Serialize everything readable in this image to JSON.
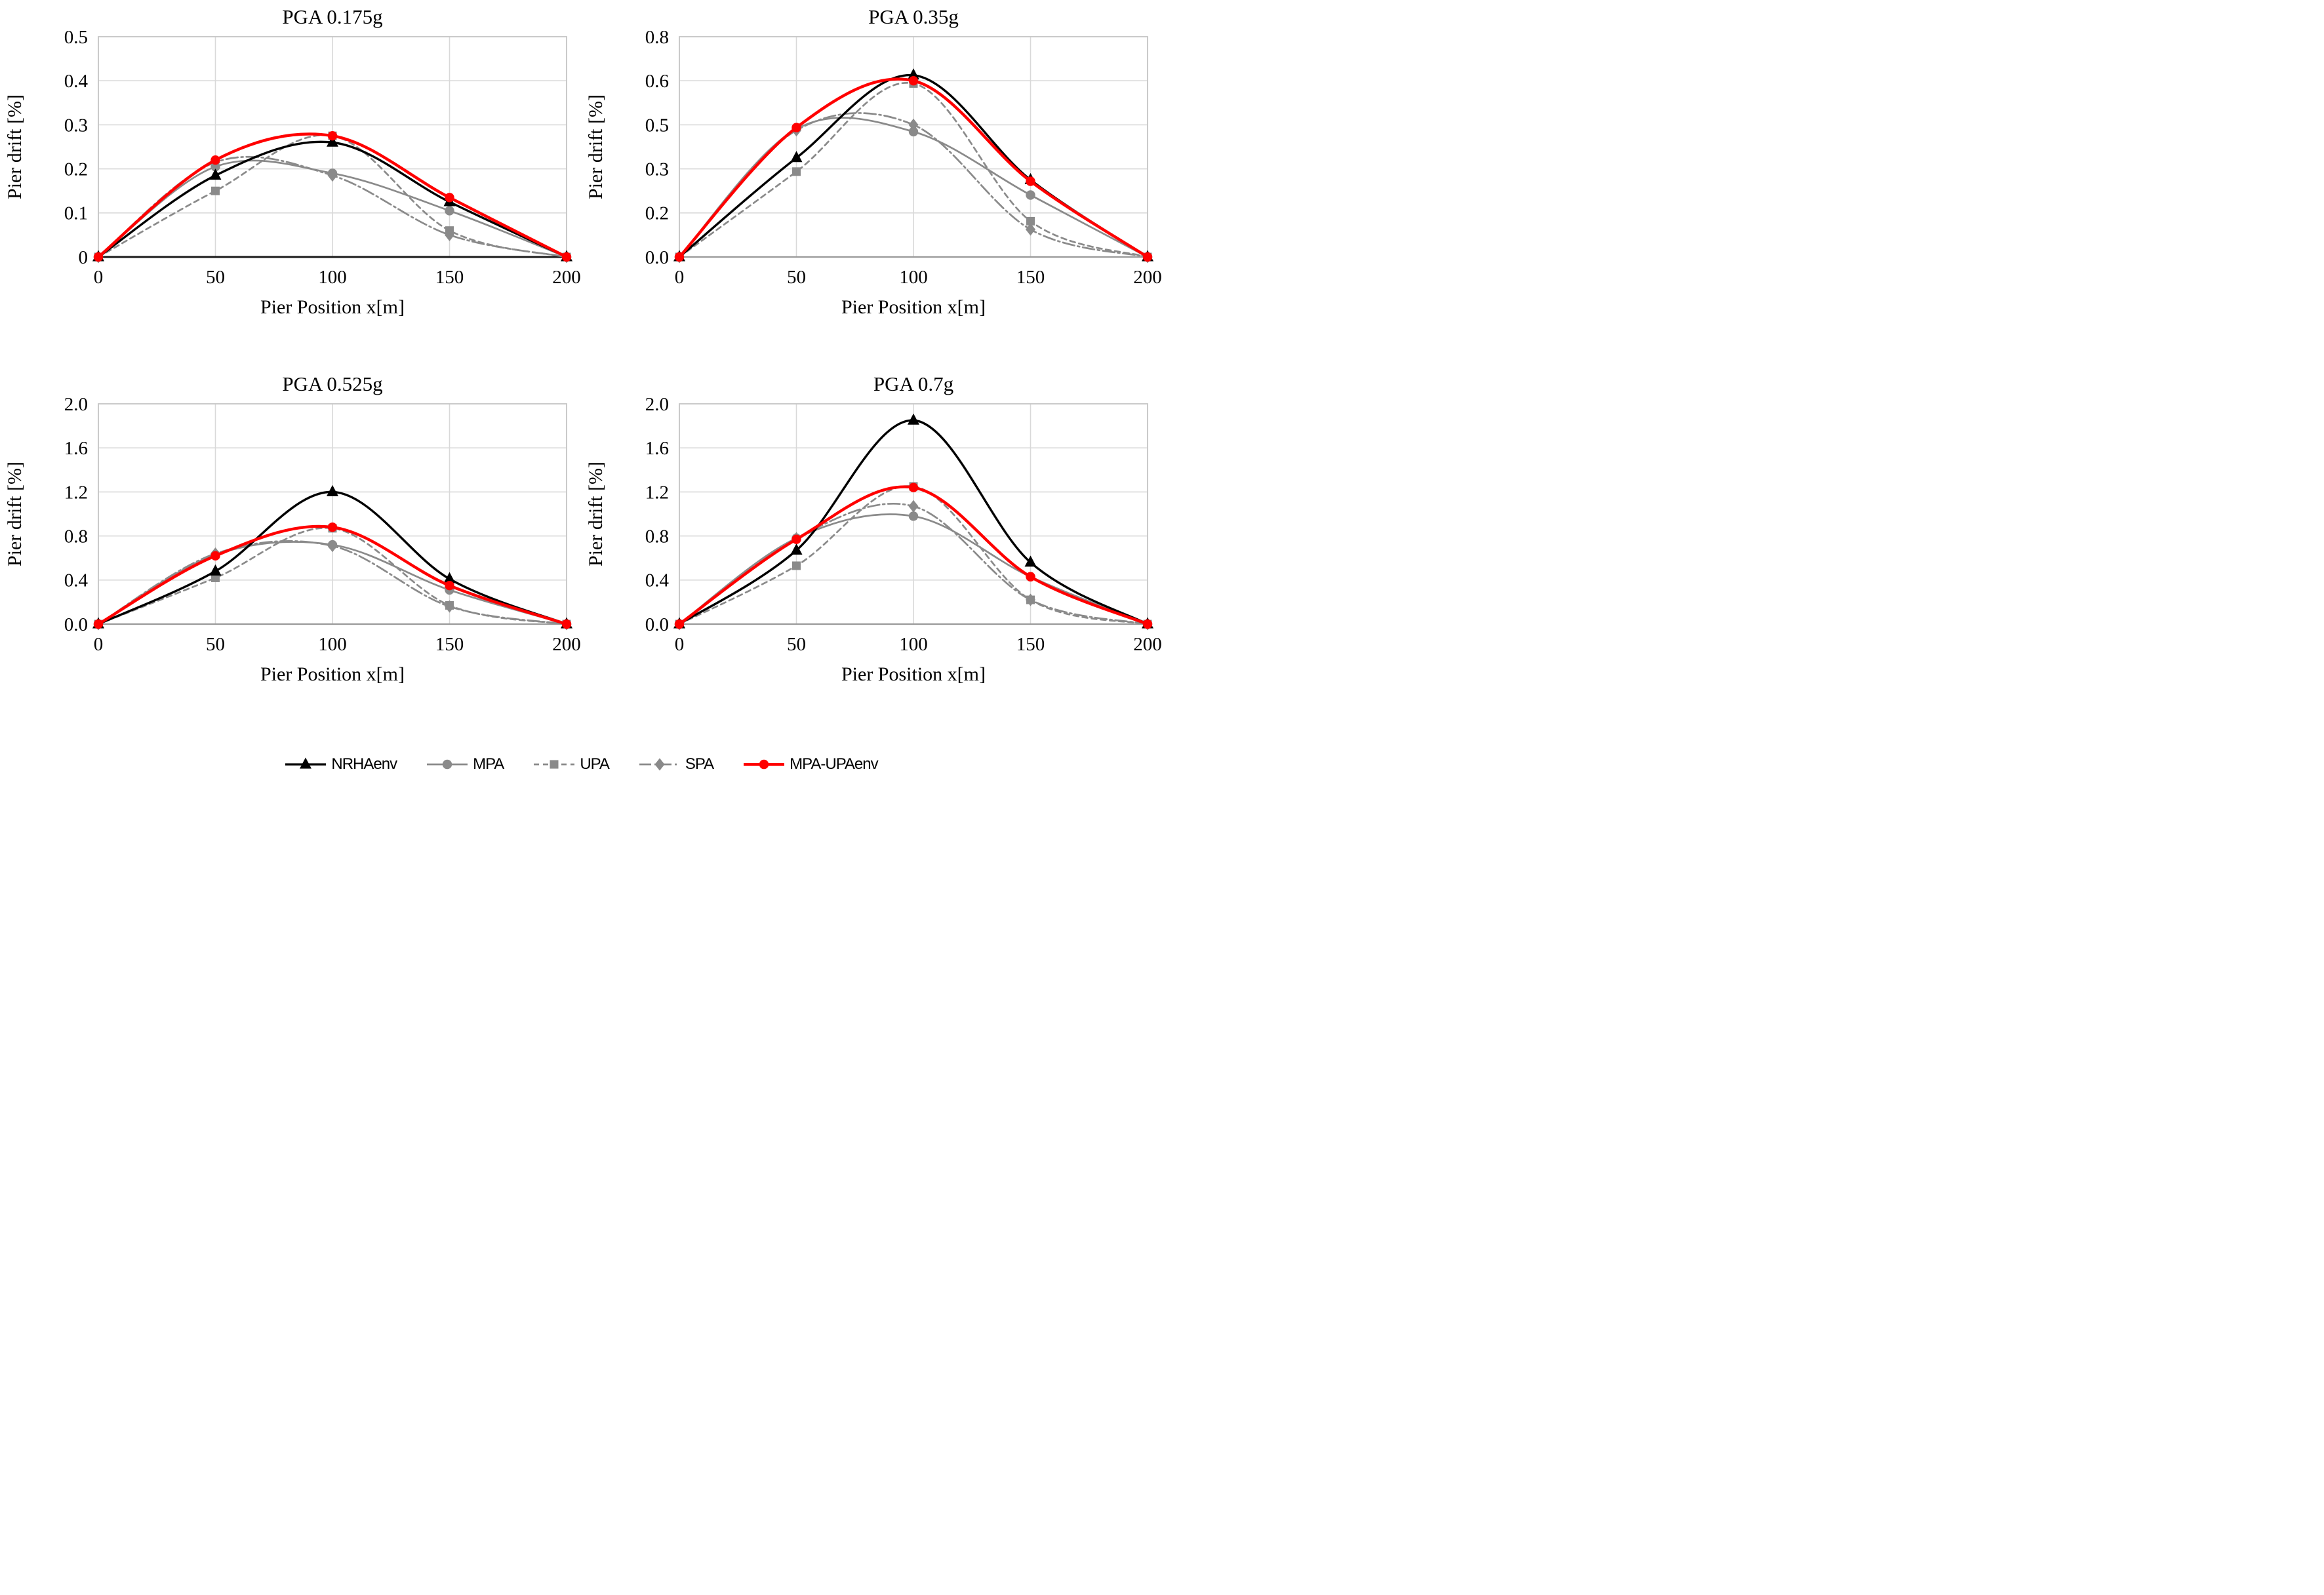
{
  "page": {
    "background": "#ffffff"
  },
  "colors": {
    "black": "#000000",
    "gray": "#8a8a8a",
    "red": "#ff0000",
    "gridline": "#d9d9d9",
    "plot_border": "#c6c6c6",
    "axis_line_dark": "#1a1a1a",
    "axis_line_gray": "#9a9a9a"
  },
  "legend": {
    "items": [
      {
        "label": "NRHAenv",
        "color": "#000000",
        "marker": "triangle",
        "dash": "solid"
      },
      {
        "label": "MPA",
        "color": "#8a8a8a",
        "marker": "circle",
        "dash": "solid"
      },
      {
        "label": "UPA",
        "color": "#8a8a8a",
        "marker": "square",
        "dash": "dashed"
      },
      {
        "label": "SPA",
        "color": "#8a8a8a",
        "marker": "diamond",
        "dash": "dashdot"
      },
      {
        "label": "MPA-UPAenv",
        "color": "#ff0000",
        "marker": "circle",
        "dash": "solid"
      }
    ]
  },
  "chart_data": [
    {
      "type": "line",
      "title": "PGA 0.175g",
      "xlabel": "Pier Position x[m]",
      "ylabel": "Pier drift  [%]",
      "x": [
        0,
        50,
        100,
        150,
        200
      ],
      "xlim": [
        0,
        200
      ],
      "ylim": [
        0,
        0.5
      ],
      "xtick_labels": [
        "0",
        "50",
        "100",
        "150",
        "200"
      ],
      "ytick_values": [
        0,
        0.1,
        0.2,
        0.3,
        0.4,
        0.5
      ],
      "ytick_labels": [
        "0",
        "0.1",
        "0.2",
        "0.3",
        "0.4",
        "0.5"
      ],
      "grid": true,
      "legend_position": "bottom-shared",
      "series": [
        {
          "name": "NRHAenv",
          "values": [
            0,
            0.185,
            0.26,
            0.125,
            0
          ]
        },
        {
          "name": "MPA",
          "values": [
            0,
            0.205,
            0.19,
            0.105,
            0
          ]
        },
        {
          "name": "UPA",
          "values": [
            0,
            0.15,
            0.275,
            0.06,
            0
          ]
        },
        {
          "name": "SPA",
          "values": [
            0,
            0.215,
            0.185,
            0.05,
            0
          ]
        },
        {
          "name": "MPA-UPAenv",
          "values": [
            0,
            0.22,
            0.275,
            0.135,
            0
          ]
        }
      ]
    },
    {
      "type": "line",
      "title": "PGA 0.35g",
      "xlabel": "Pier Position x[m]",
      "ylabel": "Pier drift  [%]",
      "x": [
        0,
        50,
        100,
        150,
        200
      ],
      "xlim": [
        0,
        200
      ],
      "ylim": [
        0,
        0.8
      ],
      "xtick_labels": [
        "0",
        "50",
        "100",
        "150",
        "200"
      ],
      "ytick_values": [
        0,
        0.16,
        0.32,
        0.48,
        0.64,
        0.8
      ],
      "ytick_labels": [
        "0.0",
        "0.2",
        "0.3",
        "0.5",
        "0.6",
        "0.8"
      ],
      "grid": true,
      "legend_position": "bottom-shared",
      "series": [
        {
          "name": "NRHAenv",
          "values": [
            0,
            0.36,
            0.66,
            0.28,
            0
          ]
        },
        {
          "name": "MPA",
          "values": [
            0,
            0.465,
            0.455,
            0.225,
            0
          ]
        },
        {
          "name": "UPA",
          "values": [
            0,
            0.31,
            0.63,
            0.13,
            0
          ]
        },
        {
          "name": "SPA",
          "values": [
            0,
            0.46,
            0.48,
            0.1,
            0
          ]
        },
        {
          "name": "MPA-UPAenv",
          "values": [
            0,
            0.47,
            0.64,
            0.275,
            0
          ]
        }
      ]
    },
    {
      "type": "line",
      "title": "PGA 0.525g",
      "xlabel": "Pier Position x[m]",
      "ylabel": "Pier drift  [%]",
      "x": [
        0,
        50,
        100,
        150,
        200
      ],
      "xlim": [
        0,
        200
      ],
      "ylim": [
        0,
        2.0
      ],
      "xtick_labels": [
        "0",
        "50",
        "100",
        "150",
        "200"
      ],
      "ytick_values": [
        0,
        0.4,
        0.8,
        1.2,
        1.6,
        2.0
      ],
      "ytick_labels": [
        "0.0",
        "0.4",
        "0.8",
        "1.2",
        "1.6",
        "2.0"
      ],
      "grid": true,
      "legend_position": "bottom-shared",
      "series": [
        {
          "name": "NRHAenv",
          "values": [
            0,
            0.48,
            1.2,
            0.41,
            0
          ]
        },
        {
          "name": "MPA",
          "values": [
            0,
            0.63,
            0.72,
            0.31,
            0
          ]
        },
        {
          "name": "UPA",
          "values": [
            0,
            0.42,
            0.87,
            0.17,
            0
          ]
        },
        {
          "name": "SPA",
          "values": [
            0,
            0.64,
            0.71,
            0.16,
            0
          ]
        },
        {
          "name": "MPA-UPAenv",
          "values": [
            0,
            0.62,
            0.88,
            0.35,
            0
          ]
        }
      ]
    },
    {
      "type": "line",
      "title": "PGA 0.7g",
      "xlabel": "Pier Position x[m]",
      "ylabel": "Pier drift  [%]",
      "x": [
        0,
        50,
        100,
        150,
        200
      ],
      "xlim": [
        0,
        200
      ],
      "ylim": [
        0,
        2.0
      ],
      "xtick_labels": [
        "0",
        "50",
        "100",
        "150",
        "200"
      ],
      "ytick_values": [
        0,
        0.4,
        0.8,
        1.2,
        1.6,
        2.0
      ],
      "ytick_labels": [
        "0.0",
        "0.4",
        "0.8",
        "1.2",
        "1.6",
        "2.0"
      ],
      "grid": true,
      "legend_position": "bottom-shared",
      "series": [
        {
          "name": "NRHAenv",
          "values": [
            0,
            0.67,
            1.85,
            0.56,
            0
          ]
        },
        {
          "name": "MPA",
          "values": [
            0,
            0.78,
            0.98,
            0.43,
            0
          ]
        },
        {
          "name": "UPA",
          "values": [
            0,
            0.53,
            1.25,
            0.22,
            0
          ]
        },
        {
          "name": "SPA",
          "values": [
            0,
            0.78,
            1.07,
            0.22,
            0
          ]
        },
        {
          "name": "MPA-UPAenv",
          "values": [
            0,
            0.77,
            1.24,
            0.43,
            0
          ]
        }
      ]
    }
  ]
}
